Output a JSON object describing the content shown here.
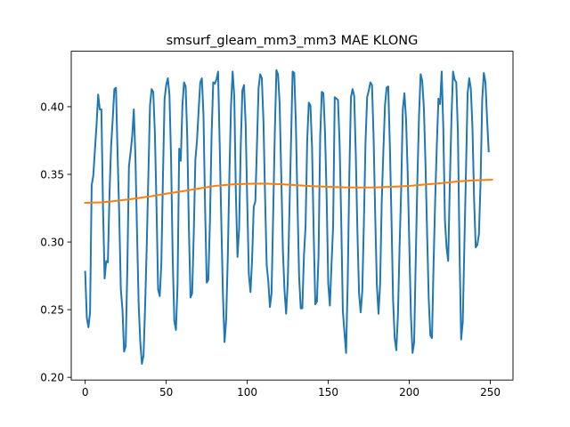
{
  "chart_data": {
    "type": "line",
    "title": "smsurf_gleam_mm3_mm3 MAE KLONG",
    "xlabel": "",
    "ylabel": "",
    "xlim": [
      -8.6,
      264
    ],
    "ylim": [
      0.198,
      0.441
    ],
    "xticks": [
      0,
      50,
      100,
      150,
      200,
      250
    ],
    "yticks": [
      0.2,
      0.25,
      0.3,
      0.35,
      0.4
    ],
    "xtick_labels": [
      "0",
      "50",
      "100",
      "150",
      "200",
      "250"
    ],
    "ytick_labels": [
      "0.20",
      "0.25",
      "0.30",
      "0.35",
      "0.40"
    ],
    "grid": false,
    "series": [
      {
        "color": "#1f77b4",
        "values": [
          [
            0,
            0.278
          ],
          [
            1,
            0.244
          ],
          [
            2,
            0.237
          ],
          [
            3,
            0.248
          ],
          [
            4,
            0.342
          ],
          [
            5,
            0.349
          ],
          [
            6,
            0.368
          ],
          [
            7,
            0.386
          ],
          [
            8,
            0.409
          ],
          [
            9,
            0.398
          ],
          [
            10,
            0.398
          ],
          [
            11,
            0.326
          ],
          [
            12,
            0.273
          ],
          [
            13,
            0.286
          ],
          [
            14,
            0.285
          ],
          [
            15,
            0.335
          ],
          [
            16,
            0.371
          ],
          [
            17,
            0.391
          ],
          [
            18,
            0.413
          ],
          [
            19,
            0.414
          ],
          [
            20,
            0.365
          ],
          [
            21,
            0.32
          ],
          [
            22,
            0.265
          ],
          [
            23,
            0.25
          ],
          [
            24,
            0.219
          ],
          [
            25,
            0.223
          ],
          [
            26,
            0.28
          ],
          [
            27,
            0.356
          ],
          [
            28,
            0.366
          ],
          [
            29,
            0.378
          ],
          [
            30,
            0.398
          ],
          [
            31,
            0.363
          ],
          [
            32,
            0.307
          ],
          [
            33,
            0.254
          ],
          [
            34,
            0.226
          ],
          [
            35,
            0.21
          ],
          [
            36,
            0.216
          ],
          [
            37,
            0.253
          ],
          [
            38,
            0.298
          ],
          [
            39,
            0.35
          ],
          [
            40,
            0.401
          ],
          [
            41,
            0.413
          ],
          [
            42,
            0.411
          ],
          [
            43,
            0.381
          ],
          [
            44,
            0.327
          ],
          [
            45,
            0.265
          ],
          [
            46,
            0.26
          ],
          [
            47,
            0.284
          ],
          [
            48,
            0.349
          ],
          [
            49,
            0.406
          ],
          [
            50,
            0.416
          ],
          [
            51,
            0.421
          ],
          [
            52,
            0.409
          ],
          [
            53,
            0.362
          ],
          [
            54,
            0.288
          ],
          [
            55,
            0.242
          ],
          [
            56,
            0.235
          ],
          [
            57,
            0.268
          ],
          [
            58,
            0.369
          ],
          [
            59,
            0.36
          ],
          [
            60,
            0.401
          ],
          [
            61,
            0.418
          ],
          [
            62,
            0.415
          ],
          [
            63,
            0.377
          ],
          [
            64,
            0.31
          ],
          [
            65,
            0.259
          ],
          [
            66,
            0.262
          ],
          [
            67,
            0.306
          ],
          [
            68,
            0.361
          ],
          [
            69,
            0.375
          ],
          [
            70,
            0.397
          ],
          [
            71,
            0.418
          ],
          [
            72,
            0.421
          ],
          [
            73,
            0.394
          ],
          [
            74,
            0.325
          ],
          [
            75,
            0.27
          ],
          [
            76,
            0.272
          ],
          [
            77,
            0.316
          ],
          [
            78,
            0.379
          ],
          [
            79,
            0.418
          ],
          [
            80,
            0.417
          ],
          [
            81,
            0.42
          ],
          [
            82,
            0.426
          ],
          [
            83,
            0.372
          ],
          [
            84,
            0.315
          ],
          [
            85,
            0.261
          ],
          [
            86,
            0.226
          ],
          [
            87,
            0.243
          ],
          [
            88,
            0.289
          ],
          [
            89,
            0.35
          ],
          [
            90,
            0.401
          ],
          [
            91,
            0.426
          ],
          [
            92,
            0.408
          ],
          [
            93,
            0.335
          ],
          [
            94,
            0.289
          ],
          [
            95,
            0.31
          ],
          [
            96,
            0.371
          ],
          [
            97,
            0.412
          ],
          [
            98,
            0.416
          ],
          [
            99,
            0.388
          ],
          [
            100,
            0.33
          ],
          [
            101,
            0.276
          ],
          [
            102,
            0.263
          ],
          [
            103,
            0.287
          ],
          [
            104,
            0.326
          ],
          [
            105,
            0.33
          ],
          [
            106,
            0.372
          ],
          [
            107,
            0.414
          ],
          [
            108,
            0.424
          ],
          [
            109,
            0.421
          ],
          [
            110,
            0.39
          ],
          [
            111,
            0.334
          ],
          [
            112,
            0.283
          ],
          [
            113,
            0.271
          ],
          [
            114,
            0.252
          ],
          [
            115,
            0.262
          ],
          [
            116,
            0.32
          ],
          [
            117,
            0.38
          ],
          [
            118,
            0.427
          ],
          [
            119,
            0.424
          ],
          [
            120,
            0.402
          ],
          [
            121,
            0.349
          ],
          [
            122,
            0.294
          ],
          [
            123,
            0.264
          ],
          [
            124,
            0.247
          ],
          [
            125,
            0.27
          ],
          [
            126,
            0.321
          ],
          [
            127,
            0.373
          ],
          [
            128,
            0.426
          ],
          [
            129,
            0.425
          ],
          [
            130,
            0.388
          ],
          [
            131,
            0.33
          ],
          [
            132,
            0.275
          ],
          [
            133,
            0.251
          ],
          [
            134,
            0.251
          ],
          [
            135,
            0.29
          ],
          [
            136,
            0.312
          ],
          [
            137,
            0.375
          ],
          [
            138,
            0.403
          ],
          [
            139,
            0.401
          ],
          [
            140,
            0.37
          ],
          [
            141,
            0.307
          ],
          [
            142,
            0.254
          ],
          [
            143,
            0.256
          ],
          [
            144,
            0.29
          ],
          [
            145,
            0.377
          ],
          [
            146,
            0.411
          ],
          [
            147,
            0.41
          ],
          [
            148,
            0.381
          ],
          [
            149,
            0.333
          ],
          [
            150,
            0.269
          ],
          [
            151,
            0.253
          ],
          [
            152,
            0.283
          ],
          [
            153,
            0.312
          ],
          [
            154,
            0.407
          ],
          [
            155,
            0.406
          ],
          [
            156,
            0.405
          ],
          [
            157,
            0.373
          ],
          [
            158,
            0.316
          ],
          [
            159,
            0.249
          ],
          [
            160,
            0.233
          ],
          [
            161,
            0.218
          ],
          [
            162,
            0.27
          ],
          [
            163,
            0.349
          ],
          [
            164,
            0.407
          ],
          [
            165,
            0.413
          ],
          [
            166,
            0.408
          ],
          [
            167,
            0.364
          ],
          [
            168,
            0.307
          ],
          [
            169,
            0.262
          ],
          [
            170,
            0.248
          ],
          [
            171,
            0.264
          ],
          [
            172,
            0.315
          ],
          [
            173,
            0.374
          ],
          [
            174,
            0.407
          ],
          [
            175,
            0.412
          ],
          [
            176,
            0.418
          ],
          [
            177,
            0.416
          ],
          [
            178,
            0.376
          ],
          [
            179,
            0.318
          ],
          [
            180,
            0.268
          ],
          [
            181,
            0.247
          ],
          [
            182,
            0.269
          ],
          [
            183,
            0.33
          ],
          [
            184,
            0.367
          ],
          [
            185,
            0.401
          ],
          [
            186,
            0.414
          ],
          [
            187,
            0.415
          ],
          [
            188,
            0.372
          ],
          [
            189,
            0.318
          ],
          [
            190,
            0.257
          ],
          [
            191,
            0.229
          ],
          [
            192,
            0.22
          ],
          [
            193,
            0.246
          ],
          [
            194,
            0.296
          ],
          [
            195,
            0.339
          ],
          [
            196,
            0.398
          ],
          [
            197,
            0.41
          ],
          [
            198,
            0.391
          ],
          [
            199,
            0.352
          ],
          [
            200,
            0.299
          ],
          [
            201,
            0.246
          ],
          [
            202,
            0.218
          ],
          [
            203,
            0.226
          ],
          [
            204,
            0.288
          ],
          [
            205,
            0.346
          ],
          [
            206,
            0.393
          ],
          [
            207,
            0.424
          ],
          [
            208,
            0.419
          ],
          [
            209,
            0.399
          ],
          [
            210,
            0.358
          ],
          [
            211,
            0.306
          ],
          [
            212,
            0.258
          ],
          [
            213,
            0.231
          ],
          [
            214,
            0.229
          ],
          [
            215,
            0.284
          ],
          [
            216,
            0.332
          ],
          [
            217,
            0.372
          ],
          [
            218,
            0.406
          ],
          [
            219,
            0.402
          ],
          [
            220,
            0.426
          ],
          [
            221,
            0.384
          ],
          [
            222,
            0.316
          ],
          [
            223,
            0.296
          ],
          [
            224,
            0.286
          ],
          [
            225,
            0.342
          ],
          [
            226,
            0.39
          ],
          [
            227,
            0.426
          ],
          [
            228,
            0.42
          ],
          [
            229,
            0.418
          ],
          [
            230,
            0.381
          ],
          [
            231,
            0.294
          ],
          [
            232,
            0.228
          ],
          [
            233,
            0.241
          ],
          [
            234,
            0.298
          ],
          [
            235,
            0.353
          ],
          [
            236,
            0.41
          ],
          [
            237,
            0.421
          ],
          [
            238,
            0.413
          ],
          [
            239,
            0.384
          ],
          [
            240,
            0.331
          ],
          [
            241,
            0.296
          ],
          [
            242,
            0.298
          ],
          [
            243,
            0.306
          ],
          [
            244,
            0.345
          ],
          [
            245,
            0.405
          ],
          [
            246,
            0.425
          ],
          [
            247,
            0.418
          ],
          [
            248,
            0.391
          ],
          [
            249,
            0.367
          ]
        ]
      },
      {
        "color": "#ff7f0e",
        "values": [
          [
            0,
            0.329
          ],
          [
            10,
            0.3293
          ],
          [
            20,
            0.3305
          ],
          [
            30,
            0.332
          ],
          [
            40,
            0.3337
          ],
          [
            50,
            0.3357
          ],
          [
            60,
            0.3375
          ],
          [
            70,
            0.3395
          ],
          [
            80,
            0.3415
          ],
          [
            90,
            0.3425
          ],
          [
            100,
            0.343
          ],
          [
            110,
            0.3432
          ],
          [
            120,
            0.3428
          ],
          [
            130,
            0.342
          ],
          [
            140,
            0.3413
          ],
          [
            150,
            0.3408
          ],
          [
            160,
            0.3404
          ],
          [
            170,
            0.3403
          ],
          [
            180,
            0.3404
          ],
          [
            190,
            0.3409
          ],
          [
            200,
            0.3415
          ],
          [
            210,
            0.3425
          ],
          [
            220,
            0.3435
          ],
          [
            230,
            0.3448
          ],
          [
            240,
            0.3456
          ],
          [
            251,
            0.346
          ]
        ]
      }
    ]
  }
}
